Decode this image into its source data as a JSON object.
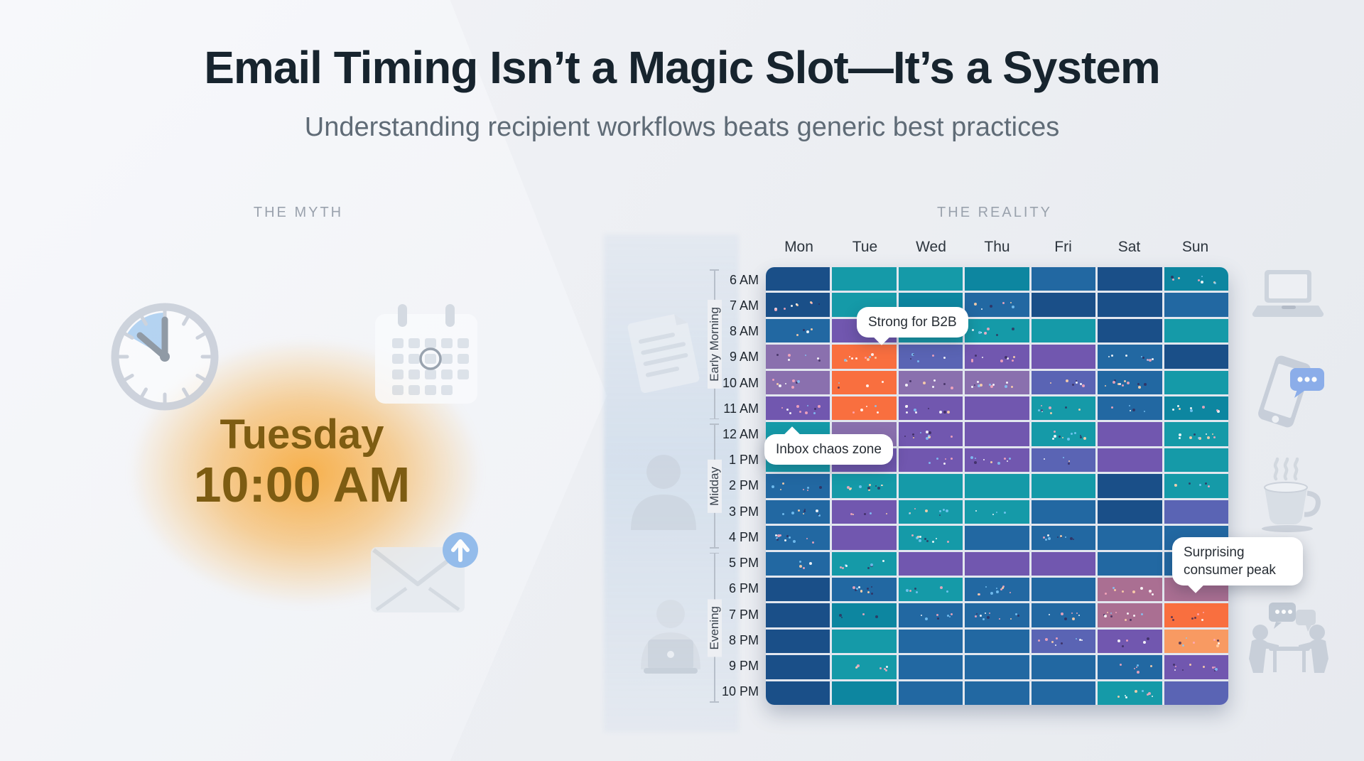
{
  "header": {
    "title": "Email Timing Isn’t a Magic Slot—It’s a System",
    "subtitle": "Understanding recipient workflows beats generic best practices"
  },
  "myth": {
    "label": "THE MYTH",
    "day": "Tuesday",
    "time": "10:00 AM",
    "icons": [
      "clock-icon",
      "calendar-icon",
      "envelope-send-icon"
    ],
    "glow_color": "#f7a32c",
    "text_color": "#7d5c12"
  },
  "reality": {
    "label": "THE REALITY",
    "left_icons": [
      "document-icon",
      "person-icon",
      "person-laptop-icon"
    ],
    "right_icons": [
      "laptop-icon",
      "phone-chat-icon",
      "coffee-icon",
      "meeting-icon"
    ]
  },
  "chart_data": {
    "type": "heatmap",
    "title": "Email engagement by day and hour",
    "columns": [
      "Mon",
      "Tue",
      "Wed",
      "Thu",
      "Fri",
      "Sat",
      "Sun"
    ],
    "rows": [
      "6 AM",
      "7 AM",
      "8 AM",
      "9 AM",
      "10 AM",
      "11 AM",
      "12 AM",
      "1 PM",
      "2 PM",
      "3 PM",
      "4 PM",
      "5 PM",
      "6 PM",
      "7 PM",
      "8 PM",
      "9 PM",
      "10 PM"
    ],
    "row_groups": [
      {
        "label": "Early Morning",
        "from": "6 AM",
        "to": "11 AM"
      },
      {
        "label": "Midday",
        "from": "12 AM",
        "to": "4 PM"
      },
      {
        "label": "Evening",
        "from": "5 PM",
        "to": "10 PM"
      }
    ],
    "palette": {
      "D": "#1a4f88",
      "B": "#2268a2",
      "T": "#159aa8",
      "E": "#0d86a0",
      "P": "#7157af",
      "M": "#8a70ae",
      "V": "#5a64b4",
      "O": "#f96f3f",
      "o": "#f89a62",
      "R": "#aa6f92"
    },
    "encoding_note": "cell codes reference palette; '*' suffix = cell shows scattered activity dots",
    "grid": [
      [
        "D",
        "T",
        "T",
        "E",
        "B",
        "D",
        "E*"
      ],
      [
        "D*",
        "T",
        "E",
        "B*",
        "D",
        "D",
        "B"
      ],
      [
        "B*",
        "P",
        "T",
        "T*",
        "T",
        "D",
        "T"
      ],
      [
        "M*",
        "O*",
        "V*",
        "P*",
        "P",
        "B*",
        "D"
      ],
      [
        "M*",
        "O*",
        "M*",
        "M*",
        "V*",
        "B*",
        "T"
      ],
      [
        "P*",
        "O*",
        "P*",
        "P",
        "T*",
        "B*",
        "E*"
      ],
      [
        "T",
        "M",
        "P*",
        "P",
        "T*",
        "P",
        "T*"
      ],
      [
        "T",
        "P",
        "P*",
        "P*",
        "V*",
        "P",
        "T"
      ],
      [
        "B*",
        "T*",
        "T",
        "T",
        "T",
        "D",
        "T*"
      ],
      [
        "B*",
        "P*",
        "T*",
        "T*",
        "B",
        "D",
        "V"
      ],
      [
        "B*",
        "P",
        "T*",
        "B",
        "B*",
        "B",
        "B"
      ],
      [
        "B*",
        "T*",
        "P",
        "P",
        "P",
        "B",
        "B"
      ],
      [
        "D",
        "B*",
        "T*",
        "B*",
        "B",
        "R*",
        "R"
      ],
      [
        "D",
        "E*",
        "B*",
        "B*",
        "B*",
        "R*",
        "O*"
      ],
      [
        "D",
        "T",
        "B",
        "B",
        "V*",
        "P*",
        "o*"
      ],
      [
        "D",
        "T*",
        "B",
        "B",
        "B",
        "B*",
        "P*"
      ],
      [
        "D",
        "E",
        "B",
        "B",
        "B",
        "T*",
        "V"
      ]
    ],
    "annotations": [
      {
        "text": "Strong for B2B",
        "target": "Tue 9 AM–11 AM",
        "tail": "down"
      },
      {
        "text": "Inbox chaos zone",
        "target": "Mon 11 AM",
        "tail": "up"
      },
      {
        "text": "Surprising consumer peak",
        "target": "Sun 7 PM",
        "tail": "down"
      }
    ],
    "legend_position": "none",
    "grid_lines": "white gaps between cells"
  }
}
